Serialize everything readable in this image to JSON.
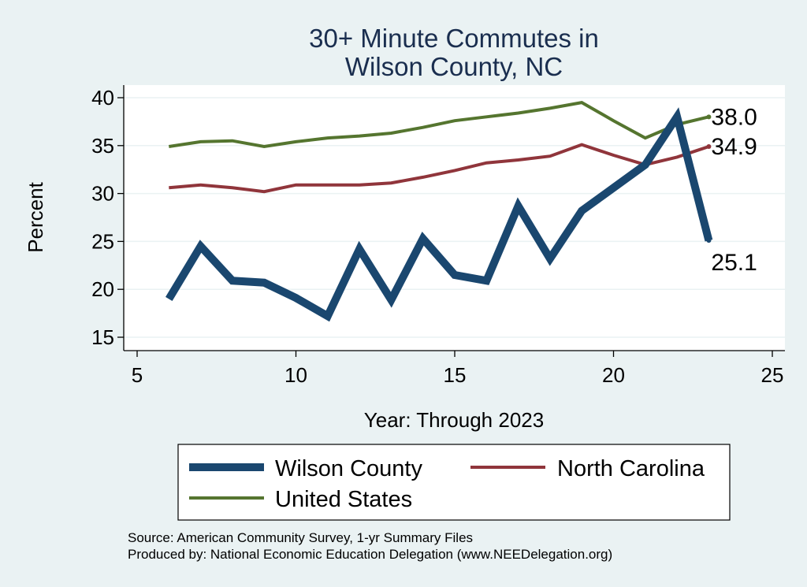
{
  "chart_data": {
    "type": "line",
    "title": [
      "30+ Minute Commutes in",
      "Wilson County, NC"
    ],
    "xlabel": "Year: Through 2023",
    "ylabel": "Percent",
    "xlim": [
      5,
      25
    ],
    "ylim": [
      14,
      41
    ],
    "xticks": [
      5,
      10,
      15,
      20,
      25
    ],
    "yticks": [
      15,
      20,
      25,
      30,
      35,
      40
    ],
    "x": [
      6,
      7,
      8,
      9,
      10,
      11,
      12,
      13,
      14,
      15,
      16,
      17,
      18,
      19,
      20,
      21,
      22,
      23
    ],
    "series": [
      {
        "name": "Wilson County",
        "color": "#1a476f",
        "width": 10,
        "values": [
          19.0,
          24.5,
          20.9,
          20.7,
          19.1,
          17.2,
          24.2,
          18.9,
          25.3,
          21.5,
          20.9,
          28.7,
          23.2,
          28.2,
          30.6,
          33.0,
          38.0,
          25.1
        ],
        "end_label": "25.1"
      },
      {
        "name": "North Carolina",
        "color": "#90353b",
        "width": 4,
        "values": [
          30.6,
          30.9,
          30.6,
          30.2,
          30.9,
          30.9,
          30.9,
          31.1,
          31.7,
          32.4,
          33.2,
          33.5,
          33.9,
          35.1,
          34.0,
          33.0,
          33.8,
          34.9
        ],
        "end_label": "34.9"
      },
      {
        "name": "United States",
        "color": "#55752f",
        "width": 4,
        "values": [
          34.9,
          35.4,
          35.5,
          34.9,
          35.4,
          35.8,
          36.0,
          36.3,
          36.9,
          37.6,
          38.0,
          38.4,
          38.9,
          39.5,
          37.6,
          35.8,
          37.2,
          38.0
        ],
        "end_label": "38.0"
      }
    ],
    "legend": [
      "Wilson County",
      "North Carolina",
      "United States"
    ],
    "legend_position": "bottom",
    "grid": true
  },
  "notes": {
    "source": "Source: American Community Survey, 1-yr Summary Files",
    "produced": "Produced by: National Economic Education Delegation (www.NEEDelegation.org)"
  },
  "colors": {
    "background": "#eaf2f3",
    "plot_area": "#ffffff",
    "title": "#1a2e4f"
  }
}
